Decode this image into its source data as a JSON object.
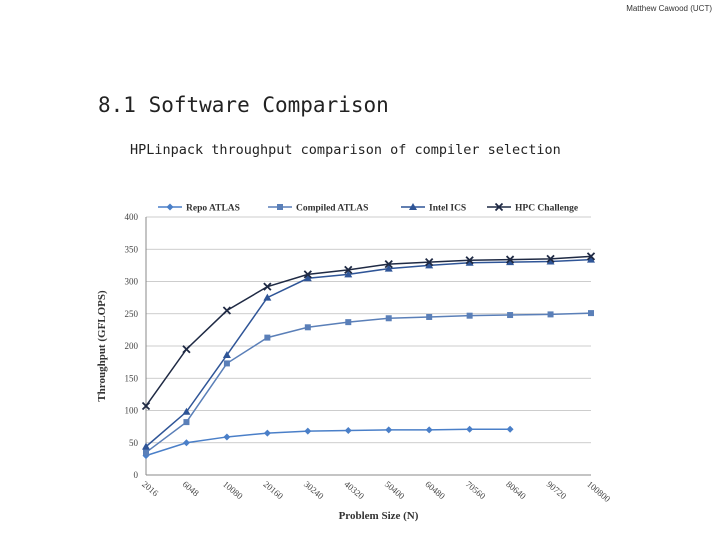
{
  "header": {
    "author": "Matthew Cawood (UCT)"
  },
  "slide": {
    "title": "8.1 Software Comparison",
    "subtitle": "HPLinpack throughput comparison of compiler selection"
  },
  "chart_data": {
    "type": "line",
    "title": "",
    "xlabel": "Problem Size (N)",
    "ylabel": "Throughput (GFLOPS)",
    "categories": [
      "2016",
      "6048",
      "10080",
      "20160",
      "30240",
      "40320",
      "50400",
      "60480",
      "70560",
      "80640",
      "90720",
      "100800"
    ],
    "ylim": [
      0,
      400
    ],
    "yticks": [
      0,
      50,
      100,
      150,
      200,
      250,
      300,
      350,
      400
    ],
    "grid": true,
    "legend_position": "top",
    "series": [
      {
        "name": "Repo ATLAS",
        "color": "#4a7fc8",
        "marker": "diamond",
        "values": [
          30,
          50,
          59,
          65,
          68,
          69,
          70,
          70,
          71,
          71,
          null,
          null
        ]
      },
      {
        "name": "Compiled ATLAS",
        "color": "#5a7fb8",
        "marker": "square",
        "values": [
          35,
          82,
          173,
          213,
          229,
          237,
          243,
          245,
          247,
          248,
          249,
          251
        ]
      },
      {
        "name": "Intel ICS",
        "color": "#2f5597",
        "marker": "triangle",
        "values": [
          44,
          98,
          186,
          275,
          305,
          311,
          320,
          325,
          329,
          330,
          331,
          334
        ]
      },
      {
        "name": "HPC Challenge",
        "color": "#1f2a44",
        "marker": "x",
        "values": [
          107,
          195,
          255,
          292,
          311,
          318,
          327,
          330,
          333,
          334,
          335,
          339
        ]
      }
    ]
  }
}
